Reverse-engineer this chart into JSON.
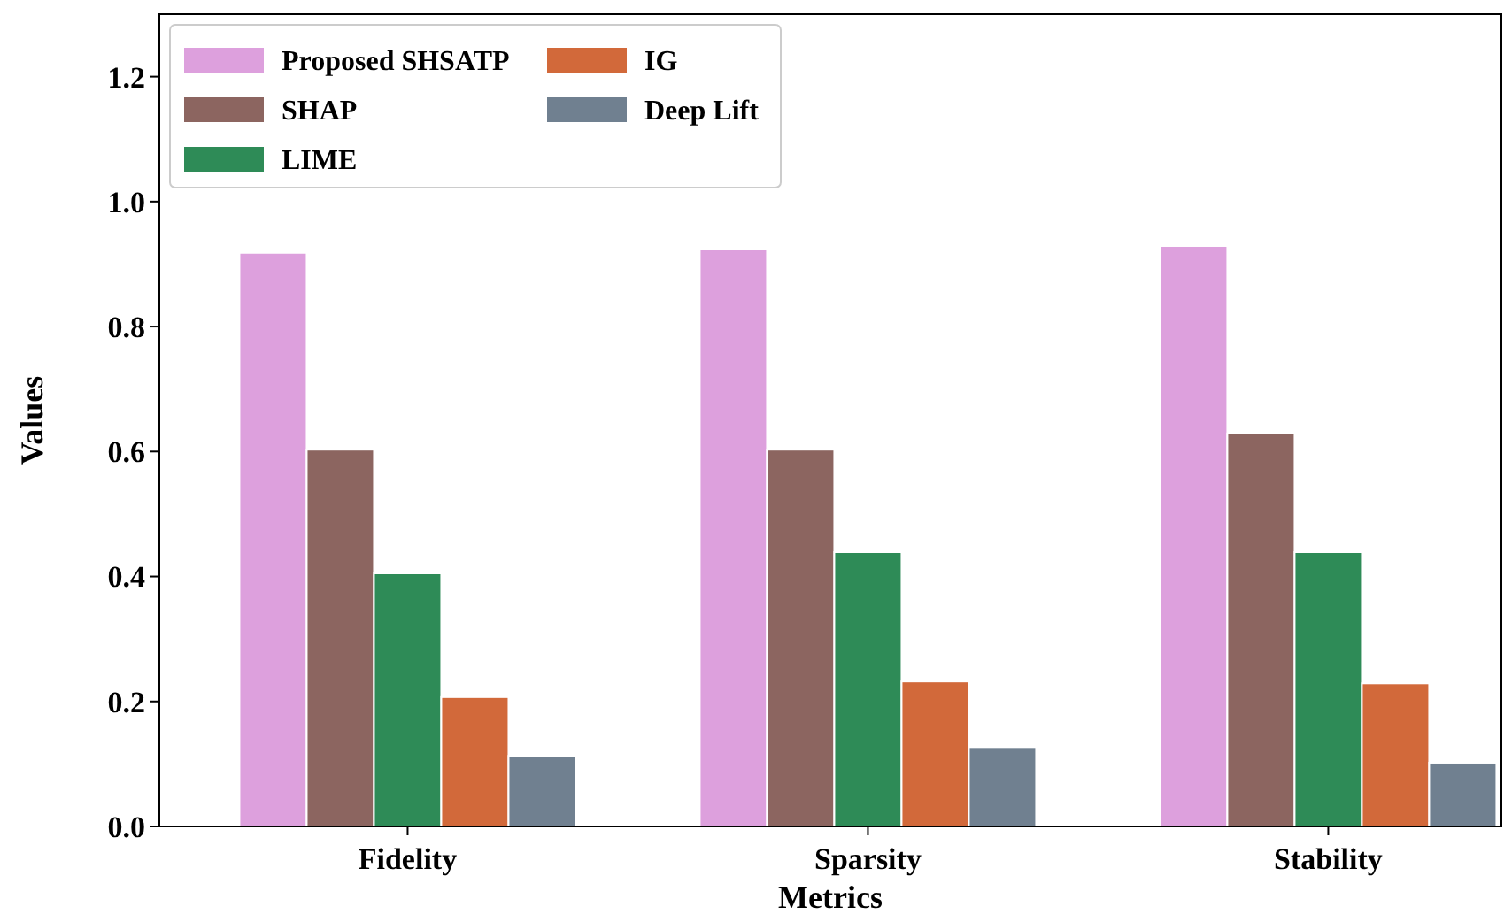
{
  "chart_data": {
    "type": "bar",
    "xlabel": "Metrics",
    "ylabel": "Values",
    "categories": [
      "Fidelity",
      "Sparsity",
      "Stability"
    ],
    "series": [
      {
        "name": "Proposed SHSATP",
        "color": "#dda0dd",
        "values": [
          0.918,
          0.924,
          0.929
        ]
      },
      {
        "name": "SHAP",
        "color": "#8c6560",
        "values": [
          0.603,
          0.603,
          0.629
        ]
      },
      {
        "name": "LIME",
        "color": "#2e8b57",
        "values": [
          0.405,
          0.439,
          0.439
        ]
      },
      {
        "name": "IG",
        "color": "#d2693a",
        "values": [
          0.207,
          0.232,
          0.229
        ]
      },
      {
        "name": "Deep Lift",
        "color": "#708090",
        "values": [
          0.113,
          0.127,
          0.102
        ]
      }
    ],
    "ylim": [
      0,
      1.3
    ],
    "yticks": [
      {
        "value": 0,
        "label": "0.0"
      },
      0.2,
      0.4,
      0.6,
      0.8,
      {
        "value": 1,
        "label": "1.0"
      },
      1.2
    ],
    "legend": "top left"
  }
}
